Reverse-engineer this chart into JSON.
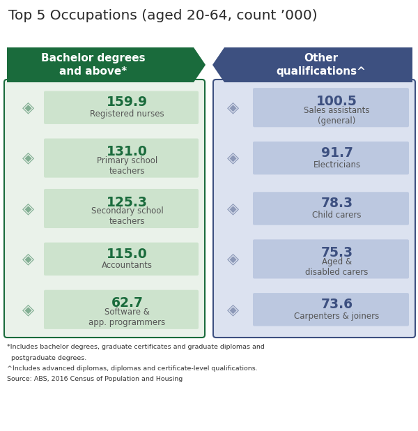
{
  "title": "Top 5 Occupations (aged 20-64, count ’000)",
  "left_header": "Bachelor degrees\nand above*",
  "right_header": "Other\nqualifications^",
  "left_color": "#1a6b3c",
  "right_color": "#3d5080",
  "left_bg": "#eaf2ea",
  "right_bg": "#dce2f0",
  "left_row_bg": "#cde3cd",
  "right_row_bg": "#bcc8e0",
  "left_items": [
    {
      "value": "159.9",
      "label": "Registered nurses"
    },
    {
      "value": "131.0",
      "label": "Primary school\nteachers"
    },
    {
      "value": "125.3",
      "label": "Secondary school\nteachers"
    },
    {
      "value": "115.0",
      "label": "Accountants"
    },
    {
      "value": "62.7",
      "label": "Software &\napp. programmers"
    }
  ],
  "right_items": [
    {
      "value": "100.5",
      "label": "Sales assistants\n(general)"
    },
    {
      "value": "91.7",
      "label": "Electricians"
    },
    {
      "value": "78.3",
      "label": "Child carers"
    },
    {
      "value": "75.3",
      "label": "Aged &\ndisabled carers"
    },
    {
      "value": "73.6",
      "label": "Carpenters & joiners"
    }
  ],
  "left_icons": [
    "✏",
    "℗",
    "▷",
    "⊞",
    "⌚"
  ],
  "right_icons": [
    "☆",
    "⚡",
    "✋",
    "♿",
    "⚒"
  ],
  "fn1": "*Includes bachelor degrees, graduate certificates and graduate diplomas and",
  "fn1b": "  postgraduate degrees.",
  "fn2": "^Includes advanced diplomas, diplomas and certificate-level qualifications.",
  "fn3": "Source: ABS, 2016 Census of Population and Housing"
}
